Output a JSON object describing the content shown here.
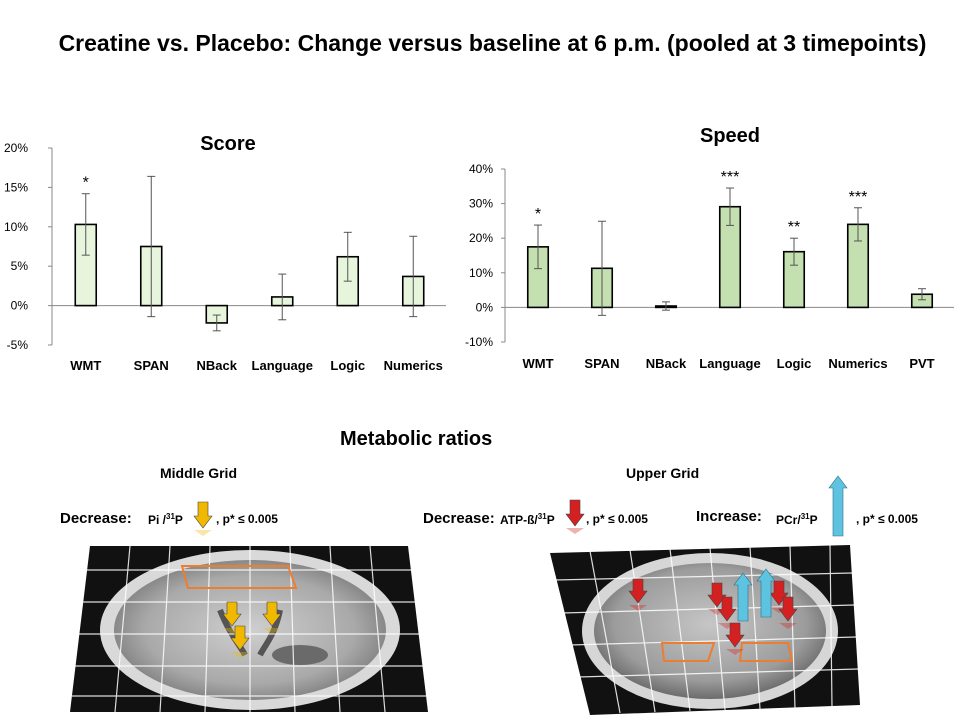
{
  "title": "Creatine vs. Placebo: Change versus baseline at 6 p.m. (pooled at 3 timepoints)",
  "chart_data": [
    {
      "type": "bar",
      "title": "Score",
      "categories": [
        "WMT",
        "SPAN",
        "NBack",
        "Language",
        "Logic",
        "Numerics"
      ],
      "values": [
        10.3,
        7.5,
        -2.2,
        1.1,
        6.2,
        3.7
      ],
      "error": [
        3.9,
        8.9,
        1.0,
        2.9,
        3.1,
        5.1
      ],
      "significance": [
        "*",
        "",
        "",
        "",
        "",
        ""
      ],
      "ylim": [
        -5,
        20
      ],
      "yticks": [
        -5,
        0,
        5,
        10,
        15,
        20
      ],
      "tick_suffix": "%",
      "bar_color": "#e7f5dd"
    },
    {
      "type": "bar",
      "title": "Speed",
      "categories": [
        "WMT",
        "SPAN",
        "NBack",
        "Language",
        "Logic",
        "Numerics",
        "PVT"
      ],
      "values": [
        17.5,
        11.3,
        0.4,
        29.1,
        16.1,
        24.0,
        3.8
      ],
      "error": [
        6.3,
        13.6,
        1.2,
        5.4,
        3.9,
        4.8,
        1.6
      ],
      "significance": [
        "*",
        "",
        "",
        "***",
        "**",
        "***",
        ""
      ],
      "ylim": [
        -10,
        40
      ],
      "yticks": [
        -10,
        0,
        10,
        20,
        30,
        40
      ],
      "tick_suffix": "%",
      "bar_color": "#c4dfb0"
    }
  ],
  "metabolic": {
    "title": "Metabolic ratios",
    "middle_grid": {
      "title": "Middle Grid",
      "decrease_label": "Decrease:",
      "ratio_text": "Pi /",
      "sup": "31",
      "ratio_tail": "P",
      "p_text": ",   p* ≤ 0.005",
      "arrow_color": "#f0b800"
    },
    "upper_grid": {
      "title": "Upper Grid",
      "decrease_label": "Decrease:",
      "decrease_ratio_text": "ATP-ß/",
      "decrease_sup": "31",
      "decrease_ratio_tail": "P",
      "decrease_p_text": ",   p* ≤ 0.005",
      "decrease_color": "#d42020",
      "increase_label": "Increase:",
      "increase_ratio_text": "PCr/",
      "increase_sup": "31",
      "increase_ratio_tail": "P",
      "increase_p_text": ",   p* ≤ 0.005",
      "increase_color": "#5ec3e0"
    }
  }
}
